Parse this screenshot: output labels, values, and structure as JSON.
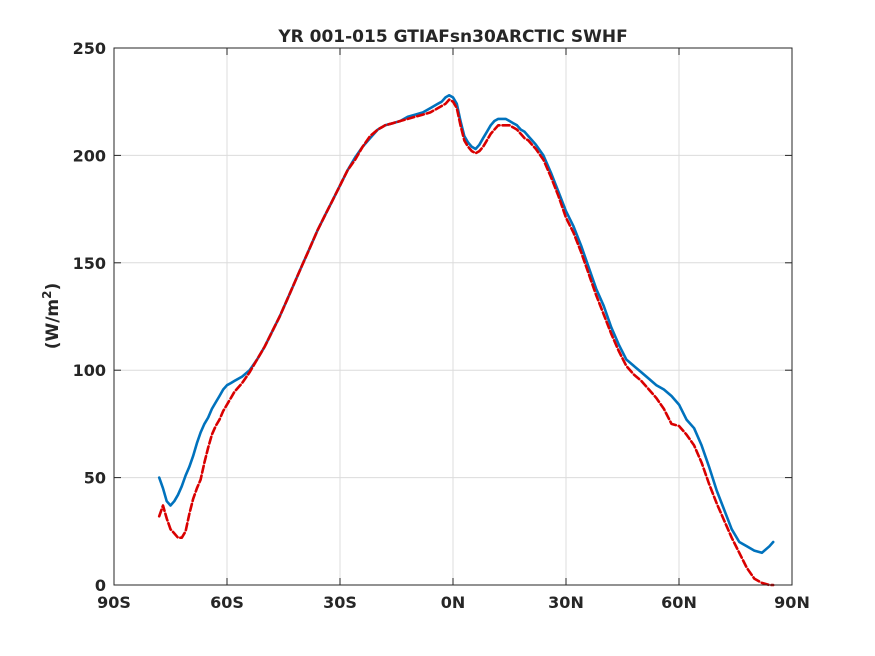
{
  "chart_data": {
    "type": "line",
    "title": "YR 001-015 GTIAFsn30ARCTIC    SWHF",
    "xlabel": "",
    "ylabel": "(W/m²)",
    "ylabel_main": "(W/m",
    "ylabel_sup": "2",
    "ylabel_close": ")",
    "xlim": [
      -90,
      90
    ],
    "ylim": [
      0,
      250
    ],
    "xticks": [
      -90,
      -60,
      -30,
      0,
      30,
      60,
      90
    ],
    "xtick_labels": [
      "90S",
      "60S",
      "30S",
      "0N",
      "30N",
      "60N",
      "90N"
    ],
    "yticks": [
      0,
      50,
      100,
      150,
      200,
      250
    ],
    "ytick_labels": [
      "0",
      "50",
      "100",
      "150",
      "200",
      "250"
    ],
    "grid": true,
    "legend": "none",
    "series": [
      {
        "color": "#0072BD",
        "style": "solid",
        "x": [
          -78,
          -77,
          -76,
          -75,
          -74,
          -73,
          -72,
          -71,
          -70,
          -69,
          -68,
          -67,
          -66,
          -65,
          -64,
          -63,
          -62,
          -61,
          -60,
          -59,
          -58,
          -56,
          -54,
          -52,
          -50,
          -48,
          -46,
          -44,
          -42,
          -40,
          -38,
          -36,
          -34,
          -32,
          -30,
          -28,
          -26,
          -24,
          -22,
          -20,
          -18,
          -16,
          -14,
          -12,
          -10,
          -8,
          -6,
          -4,
          -3,
          -2,
          -1,
          0,
          1,
          2,
          3,
          4,
          5,
          6,
          7,
          8,
          9,
          10,
          11,
          12,
          13,
          14,
          15,
          16,
          17,
          18,
          19,
          20,
          21,
          22,
          24,
          26,
          28,
          30,
          32,
          34,
          36,
          38,
          40,
          42,
          44,
          46,
          48,
          50,
          52,
          54,
          56,
          58,
          60,
          62,
          64,
          66,
          68,
          70,
          72,
          74,
          76,
          78,
          80,
          82,
          84,
          85
        ],
        "y": [
          50,
          45,
          39,
          37,
          39,
          42,
          46,
          51,
          55,
          60,
          66,
          71,
          75,
          78,
          82,
          85,
          88,
          91,
          93,
          94,
          95,
          97,
          100,
          105,
          111,
          118,
          125,
          133,
          141,
          149,
          157,
          165,
          172,
          179,
          186,
          193,
          199,
          204,
          208,
          212,
          214,
          215,
          216,
          218,
          219,
          220,
          222,
          224,
          225,
          227,
          228,
          227,
          224,
          216,
          209,
          206,
          204,
          203,
          205,
          208,
          211,
          214,
          216,
          217,
          217,
          217,
          216,
          215,
          214,
          212,
          211,
          209,
          207,
          205,
          200,
          192,
          183,
          174,
          167,
          158,
          148,
          138,
          130,
          120,
          112,
          105,
          102,
          99,
          96,
          93,
          91,
          88,
          84,
          77,
          73,
          65,
          55,
          44,
          35,
          26,
          20,
          18,
          16,
          15,
          18,
          20
        ]
      },
      {
        "color": "#D90000",
        "style": "dashed",
        "x": [
          -78,
          -77,
          -76,
          -75,
          -74,
          -73,
          -72,
          -71,
          -70,
          -69,
          -68,
          -67,
          -66,
          -65,
          -64,
          -63,
          -62,
          -61,
          -60,
          -59,
          -58,
          -56,
          -54,
          -52,
          -50,
          -48,
          -46,
          -44,
          -42,
          -40,
          -38,
          -36,
          -34,
          -32,
          -30,
          -28,
          -26,
          -24,
          -22,
          -20,
          -18,
          -16,
          -14,
          -12,
          -10,
          -8,
          -6,
          -4,
          -3,
          -2,
          -1,
          0,
          1,
          2,
          3,
          4,
          5,
          6,
          7,
          8,
          9,
          10,
          11,
          12,
          13,
          14,
          15,
          16,
          17,
          18,
          19,
          20,
          21,
          22,
          24,
          26,
          28,
          30,
          32,
          34,
          36,
          38,
          40,
          42,
          44,
          46,
          48,
          50,
          52,
          54,
          56,
          58,
          60,
          62,
          64,
          66,
          68,
          70,
          72,
          74,
          76,
          78,
          80,
          82,
          84,
          85
        ],
        "y": [
          32,
          37,
          31,
          26,
          24,
          22,
          22,
          25,
          33,
          40,
          45,
          49,
          57,
          64,
          70,
          74,
          77,
          81,
          84,
          87,
          90,
          94,
          99,
          105,
          111,
          118,
          125,
          133,
          141,
          149,
          157,
          165,
          172,
          179,
          186,
          193,
          198,
          204,
          209,
          212,
          214,
          215,
          216,
          217,
          218,
          219,
          220,
          222,
          223,
          224,
          226,
          225,
          222,
          214,
          207,
          204,
          202,
          201,
          202,
          204,
          207,
          210,
          212,
          214,
          214,
          214,
          214,
          213,
          212,
          210,
          208,
          207,
          205,
          203,
          198,
          190,
          181,
          171,
          164,
          155,
          145,
          135,
          126,
          117,
          109,
          102,
          98,
          95,
          91,
          87,
          82,
          75,
          74,
          70,
          65,
          57,
          47,
          38,
          30,
          22,
          15,
          8,
          3,
          1,
          0,
          0
        ]
      }
    ]
  }
}
